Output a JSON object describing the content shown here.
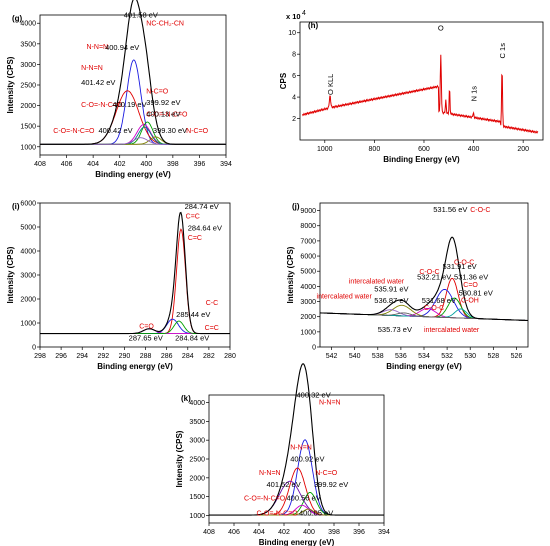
{
  "chart_data": [
    {
      "panel": "(g)",
      "type": "line",
      "xlabel": "Binding energy (eV)",
      "ylabel": "Intensity (CPS)",
      "xlim": [
        408,
        394
      ],
      "ylim": [
        800,
        4200
      ],
      "xticks": [
        408,
        406,
        404,
        402,
        400,
        398,
        396,
        394
      ],
      "yticks": [
        1000,
        1500,
        2000,
        2500,
        3000,
        3500,
        4000
      ],
      "background": 1060,
      "components": [
        {
          "color": "#1a1ae0",
          "center": 400.94,
          "height": 2050,
          "fwhm": 1.25
        },
        {
          "color": "#e00000",
          "center": 401.42,
          "height": 1300,
          "fwhm": 2.0
        },
        {
          "color": "#cc00cc",
          "center": 400.19,
          "height": 480,
          "fwhm": 1.2
        },
        {
          "color": "#00a000",
          "center": 399.92,
          "height": 540,
          "fwhm": 1.0
        },
        {
          "color": "#008080",
          "center": 400.13,
          "height": 420,
          "fwhm": 1.1
        },
        {
          "color": "#808000",
          "center": 399.3,
          "height": 180,
          "fwhm": 1.0
        },
        {
          "color": "#9060c0",
          "center": 400.42,
          "height": 160,
          "fwhm": 1.2
        }
      ],
      "annotations": [
        {
          "text": "401.58 eV",
          "x": 401.7,
          "y": 4140,
          "color": "black"
        },
        {
          "text": "NC-CH₂-CN",
          "x": 400.0,
          "y": 3950,
          "color": "red"
        },
        {
          "text": "N-N=N",
          "x": 404.5,
          "y": 3380,
          "color": "red"
        },
        {
          "text": "400.94 eV",
          "x": 403.1,
          "y": 3350,
          "color": "black"
        },
        {
          "text": "N-N=N",
          "x": 404.9,
          "y": 2860,
          "color": "red"
        },
        {
          "text": "401.42 eV",
          "x": 404.9,
          "y": 2500,
          "color": "black"
        },
        {
          "text": "N-C=O",
          "x": 400.0,
          "y": 2290,
          "color": "red"
        },
        {
          "text": "C-O=-N-C=O",
          "x": 404.9,
          "y": 1970,
          "color": "red"
        },
        {
          "text": "400.19 eV",
          "x": 402.55,
          "y": 1970,
          "color": "black"
        },
        {
          "text": "399.92 eV",
          "x": 400.0,
          "y": 2010,
          "color": "black"
        },
        {
          "text": "C-O=-N-C=O",
          "x": 400.0,
          "y": 1730,
          "color": "red"
        },
        {
          "text": "400.13 eV",
          "x": 400.0,
          "y": 1730,
          "color": "black"
        },
        {
          "text": "C-O=-N-C=O",
          "x": 407.0,
          "y": 1330,
          "color": "red"
        },
        {
          "text": "400.42 eV",
          "x": 403.6,
          "y": 1330,
          "color": "black"
        },
        {
          "text": "399.30 eV",
          "x": 399.5,
          "y": 1330,
          "color": "black"
        },
        {
          "text": "N-C=O",
          "x": 397.0,
          "y": 1330,
          "color": "red"
        }
      ]
    },
    {
      "panel": "(h)",
      "type": "line",
      "xlabel": "Binding Energy (eV)",
      "ylabel": "CPS",
      "ymultiplier": "x 10",
      "ymultiplier_exp": "4",
      "xlim": [
        1100,
        120
      ],
      "ylim": [
        0,
        11
      ],
      "xticks": [
        1000,
        800,
        600,
        400,
        200
      ],
      "yticks": [
        2,
        4,
        6,
        8,
        10
      ],
      "series_color": "#e00000",
      "labels": [
        {
          "text": "O KLL",
          "x": 979,
          "y": 4.2
        },
        {
          "text": "O",
          "x": 532,
          "y": 10.2
        },
        {
          "text": "N 1s",
          "x": 401,
          "y": 3.6
        },
        {
          "text": "C 1s",
          "x": 285,
          "y": 7.6
        }
      ]
    },
    {
      "panel": "(i)",
      "type": "line",
      "xlabel": "Binding energy (eV)",
      "ylabel": "Intensity (CPS)",
      "xlim": [
        298,
        280
      ],
      "ylim": [
        0,
        6000
      ],
      "xticks": [
        298,
        296,
        294,
        292,
        290,
        288,
        286,
        284,
        282,
        280
      ],
      "yticks": [
        0,
        1000,
        2000,
        3000,
        4000,
        5000,
        6000
      ],
      "background": 560,
      "components": [
        {
          "color": "#e00000",
          "center": 284.64,
          "height": 4350,
          "fwhm": 1.0
        },
        {
          "color": "#1a1ae0",
          "center": 285.44,
          "height": 600,
          "fwhm": 1.3
        },
        {
          "color": "#cc00cc",
          "center": 287.65,
          "height": 200,
          "fwhm": 1.3
        },
        {
          "color": "#00a000",
          "center": 284.84,
          "height": 520,
          "fwhm": 1.1
        }
      ],
      "annotations": [
        {
          "text": "284.74 eV",
          "x": 284.3,
          "y": 5750,
          "color": "black"
        },
        {
          "text": "C=C",
          "x": 284.2,
          "y": 5350,
          "color": "red"
        },
        {
          "text": "284.64 eV",
          "x": 284.0,
          "y": 4850,
          "color": "black"
        },
        {
          "text": "C=C",
          "x": 284.0,
          "y": 4450,
          "color": "red"
        },
        {
          "text": "C-C",
          "x": 282.3,
          "y": 1750,
          "color": "red"
        },
        {
          "text": "285.44 eV",
          "x": 285.1,
          "y": 1250,
          "color": "black"
        },
        {
          "text": "C=C",
          "x": 282.4,
          "y": 700,
          "color": "red"
        },
        {
          "text": "C=O",
          "x": 288.6,
          "y": 780,
          "color": "red"
        },
        {
          "text": "287.65 eV",
          "x": 289.6,
          "y": 270,
          "color": "black"
        },
        {
          "text": "284.84 eV",
          "x": 285.2,
          "y": 270,
          "color": "black"
        }
      ]
    },
    {
      "panel": "(j)",
      "type": "line",
      "xlabel": "Binding energy (eV)",
      "ylabel": "Intensity (CPS)",
      "xlim": [
        543,
        525
      ],
      "ylim": [
        0,
        9500
      ],
      "xticks": [
        542,
        540,
        538,
        536,
        534,
        532,
        530,
        528,
        526
      ],
      "yticks": [
        0,
        1000,
        2000,
        3000,
        4000,
        5000,
        6000,
        7000,
        8000,
        9000
      ],
      "background": 1750,
      "background_high": 2250,
      "components": [
        {
          "color": "#e00000",
          "center": 531.56,
          "height": 2600,
          "fwhm": 1.2
        },
        {
          "color": "#1a1ae0",
          "center": 532.21,
          "height": 1850,
          "fwhm": 1.8
        },
        {
          "color": "#cc00cc",
          "center": 533.68,
          "height": 550,
          "fwhm": 1.6
        },
        {
          "color": "#00a000",
          "center": 531.36,
          "height": 1300,
          "fwhm": 1.3
        },
        {
          "color": "#00a0a0",
          "center": 530.81,
          "height": 600,
          "fwhm": 1.2
        },
        {
          "color": "#808000",
          "center": 535.91,
          "height": 700,
          "fwhm": 1.8
        },
        {
          "color": "#9060c0",
          "center": 536.87,
          "height": 380,
          "fwhm": 1.6
        },
        {
          "color": "#606060",
          "center": 535.73,
          "height": 200,
          "fwhm": 1.4
        }
      ],
      "annotations": [
        {
          "text": "531.56 eV",
          "x": 533.2,
          "y": 8900,
          "color": "black"
        },
        {
          "text": "C-O-C",
          "x": 530.0,
          "y": 8900,
          "color": "red"
        },
        {
          "text": "C-O-C",
          "x": 531.4,
          "y": 5450,
          "color": "red"
        },
        {
          "text": "C-O-C",
          "x": 534.4,
          "y": 4800,
          "color": "red"
        },
        {
          "text": "531.91 eV",
          "x": 532.4,
          "y": 5150,
          "color": "black"
        },
        {
          "text": "532.21 eV",
          "x": 534.6,
          "y": 4450,
          "color": "black"
        },
        {
          "text": "531.36 eV",
          "x": 531.4,
          "y": 4450,
          "color": "black"
        },
        {
          "text": "intercalated water",
          "x": 540.5,
          "y": 4200,
          "color": "red"
        },
        {
          "text": "C=O",
          "x": 530.6,
          "y": 3950,
          "color": "red"
        },
        {
          "text": "535.91 eV",
          "x": 538.3,
          "y": 3650,
          "color": "black"
        },
        {
          "text": "530.81 eV",
          "x": 531.0,
          "y": 3400,
          "color": "black"
        },
        {
          "text": "intercalated water",
          "x": 543.3,
          "y": 3200,
          "color": "red"
        },
        {
          "text": "536.87 eV",
          "x": 538.3,
          "y": 2900,
          "color": "black"
        },
        {
          "text": "531.68 eV",
          "x": 534.2,
          "y": 2900,
          "color": "black"
        },
        {
          "text": "C-OH",
          "x": 530.8,
          "y": 2950,
          "color": "red"
        },
        {
          "text": "C-O-C",
          "x": 534.0,
          "y": 2450,
          "color": "red"
        },
        {
          "text": "535.73 eV",
          "x": 538.0,
          "y": 1000,
          "color": "black"
        },
        {
          "text": "intercalated water",
          "x": 534.0,
          "y": 1000,
          "color": "red"
        }
      ]
    },
    {
      "panel": "(k)",
      "type": "line",
      "xlabel": "Binding energy (eV)",
      "ylabel": "Intensity (CPS)",
      "xlim": [
        408,
        394
      ],
      "ylim": [
        800,
        4200
      ],
      "xticks": [
        408,
        406,
        404,
        402,
        400,
        398,
        396,
        394
      ],
      "yticks": [
        1000,
        1500,
        2000,
        2500,
        3000,
        3500,
        4000
      ],
      "background": 1010,
      "components": [
        {
          "color": "#1a1ae0",
          "center": 400.32,
          "height": 2000,
          "fwhm": 1.4
        },
        {
          "color": "#e00000",
          "center": 400.92,
          "height": 1250,
          "fwhm": 1.5
        },
        {
          "color": "#00a000",
          "center": 399.92,
          "height": 600,
          "fwhm": 1.2
        },
        {
          "color": "#6a0dad",
          "center": 401.52,
          "height": 900,
          "fwhm": 2.0
        },
        {
          "color": "#cc00cc",
          "center": 400.56,
          "height": 260,
          "fwhm": 1.2
        },
        {
          "color": "#808000",
          "center": 400.05,
          "height": 160,
          "fwhm": 1.0
        }
      ],
      "annotations": [
        {
          "text": "400.32 eV",
          "x": 401.0,
          "y": 4140,
          "color": "black"
        },
        {
          "text": "N-N=N",
          "x": 399.2,
          "y": 3950,
          "color": "red"
        },
        {
          "text": "N-N=N",
          "x": 401.5,
          "y": 2750,
          "color": "red"
        },
        {
          "text": "400.92 eV",
          "x": 401.5,
          "y": 2430,
          "color": "black"
        },
        {
          "text": "N-N=N",
          "x": 404.0,
          "y": 2080,
          "color": "red"
        },
        {
          "text": "N-C=O",
          "x": 399.5,
          "y": 2080,
          "color": "red"
        },
        {
          "text": "401.52 eV",
          "x": 403.4,
          "y": 1750,
          "color": "black"
        },
        {
          "text": "399.92 eV",
          "x": 399.6,
          "y": 1750,
          "color": "black"
        },
        {
          "text": "C-O=-N-C=O",
          "x": 405.2,
          "y": 1400,
          "color": "red"
        },
        {
          "text": "400.56 eV",
          "x": 401.8,
          "y": 1400,
          "color": "black"
        },
        {
          "text": "C-O=-N-C=O",
          "x": 404.2,
          "y": 1000,
          "color": "red"
        },
        {
          "text": "400.05 eV",
          "x": 400.8,
          "y": 1000,
          "color": "black"
        }
      ]
    }
  ]
}
